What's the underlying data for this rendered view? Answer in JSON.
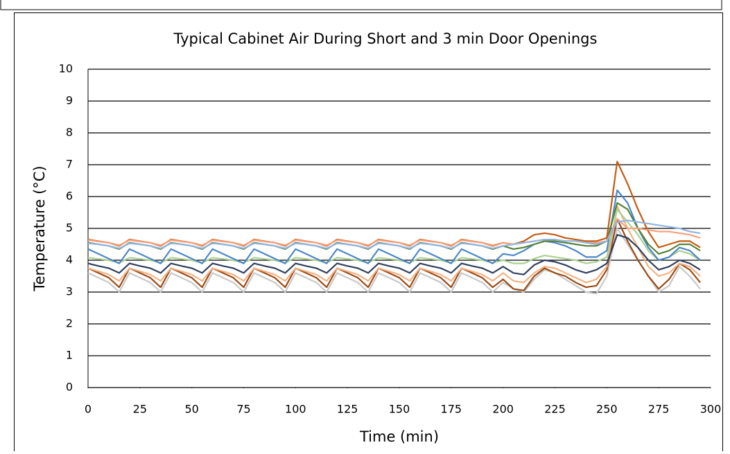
{
  "chart_data": {
    "type": "line",
    "title": "Typical Cabinet Air During Short and 3 min Door Openings",
    "x_label": "Time (min)",
    "y_label": "Temperature (°C)",
    "xlim": [
      0,
      300
    ],
    "xticks": [
      0,
      25,
      50,
      75,
      100,
      125,
      150,
      175,
      200,
      225,
      250,
      275,
      300
    ],
    "ylim": [
      0,
      10
    ],
    "yticks": [
      0,
      1,
      2,
      3,
      4,
      5,
      6,
      7,
      8,
      9,
      10
    ],
    "grid": true,
    "x": [
      0,
      5,
      10,
      15,
      20,
      25,
      30,
      35,
      40,
      45,
      50,
      55,
      60,
      65,
      70,
      75,
      80,
      85,
      90,
      95,
      100,
      105,
      110,
      115,
      120,
      125,
      130,
      135,
      140,
      145,
      150,
      155,
      160,
      165,
      170,
      175,
      180,
      185,
      190,
      195,
      200,
      205,
      210,
      215,
      220,
      225,
      230,
      235,
      240,
      245,
      250,
      255,
      260,
      265,
      270,
      275,
      280,
      285,
      290,
      295
    ],
    "series": [
      {
        "color": "#c8c8c8",
        "values": [
          3.6,
          3.45,
          3.3,
          3.0,
          3.6,
          3.45,
          3.3,
          3.0,
          3.6,
          3.45,
          3.3,
          3.0,
          3.6,
          3.45,
          3.3,
          3.0,
          3.6,
          3.45,
          3.3,
          3.0,
          3.6,
          3.45,
          3.3,
          3.0,
          3.6,
          3.45,
          3.3,
          3.0,
          3.6,
          3.45,
          3.3,
          3.0,
          3.6,
          3.45,
          3.3,
          3.0,
          3.6,
          3.45,
          3.3,
          3.0,
          3.3,
          3.1,
          3.0,
          3.4,
          3.7,
          3.6,
          3.4,
          3.2,
          3.0,
          2.95,
          3.5,
          5.0,
          4.5,
          4.0,
          3.5,
          3.0,
          3.2,
          3.8,
          3.5,
          3.1
        ]
      },
      {
        "color": "#9c4a12",
        "values": [
          3.75,
          3.6,
          3.45,
          3.15,
          3.75,
          3.6,
          3.45,
          3.15,
          3.75,
          3.6,
          3.45,
          3.15,
          3.75,
          3.6,
          3.45,
          3.15,
          3.75,
          3.6,
          3.45,
          3.15,
          3.75,
          3.6,
          3.45,
          3.15,
          3.75,
          3.6,
          3.45,
          3.15,
          3.75,
          3.6,
          3.45,
          3.15,
          3.75,
          3.6,
          3.45,
          3.15,
          3.75,
          3.6,
          3.45,
          3.15,
          3.4,
          3.1,
          3.05,
          3.5,
          3.75,
          3.6,
          3.5,
          3.3,
          3.15,
          3.2,
          3.7,
          5.3,
          4.6,
          4.0,
          3.5,
          3.1,
          3.4,
          3.9,
          3.7,
          3.3
        ]
      },
      {
        "color": "#f4b183",
        "values": [
          3.75,
          3.65,
          3.55,
          3.35,
          3.75,
          3.65,
          3.55,
          3.35,
          3.75,
          3.65,
          3.55,
          3.35,
          3.75,
          3.65,
          3.55,
          3.35,
          3.75,
          3.65,
          3.55,
          3.35,
          3.75,
          3.65,
          3.55,
          3.35,
          3.75,
          3.65,
          3.55,
          3.35,
          3.75,
          3.65,
          3.55,
          3.35,
          3.75,
          3.65,
          3.55,
          3.35,
          3.75,
          3.65,
          3.55,
          3.35,
          3.6,
          3.35,
          3.3,
          3.6,
          3.8,
          3.75,
          3.6,
          3.45,
          3.3,
          3.4,
          3.8,
          5.7,
          5.0,
          4.4,
          3.8,
          3.5,
          3.6,
          3.9,
          3.8,
          3.5
        ]
      },
      {
        "color": "#2f3f5f",
        "values": [
          3.9,
          3.82,
          3.75,
          3.6,
          3.9,
          3.82,
          3.75,
          3.6,
          3.9,
          3.82,
          3.75,
          3.6,
          3.9,
          3.82,
          3.75,
          3.6,
          3.9,
          3.82,
          3.75,
          3.6,
          3.9,
          3.82,
          3.75,
          3.6,
          3.9,
          3.82,
          3.75,
          3.6,
          3.9,
          3.82,
          3.75,
          3.6,
          3.9,
          3.82,
          3.75,
          3.6,
          3.9,
          3.82,
          3.75,
          3.6,
          3.8,
          3.6,
          3.55,
          3.85,
          4.0,
          3.95,
          3.85,
          3.7,
          3.6,
          3.7,
          3.9,
          4.8,
          4.7,
          4.4,
          4.0,
          3.7,
          3.8,
          4.0,
          3.9,
          3.7
        ]
      },
      {
        "color": "#a9d18e",
        "values": [
          4.08,
          4.04,
          4.0,
          3.92,
          4.08,
          4.04,
          4.0,
          3.92,
          4.08,
          4.04,
          4.0,
          3.92,
          4.08,
          4.04,
          4.0,
          3.92,
          4.08,
          4.04,
          4.0,
          3.92,
          4.08,
          4.04,
          4.0,
          3.92,
          4.08,
          4.04,
          4.0,
          3.92,
          4.08,
          4.04,
          4.0,
          3.92,
          4.08,
          4.04,
          4.0,
          3.92,
          4.08,
          4.04,
          4.0,
          3.92,
          4.0,
          3.9,
          3.9,
          4.05,
          4.15,
          4.1,
          4.05,
          4.0,
          3.9,
          3.95,
          4.1,
          5.6,
          5.2,
          4.8,
          4.3,
          4.0,
          4.1,
          4.3,
          4.2,
          4.0
        ]
      },
      {
        "color": "#4a86c8",
        "values": [
          4.35,
          4.2,
          4.05,
          3.9,
          4.35,
          4.2,
          4.05,
          3.9,
          4.35,
          4.2,
          4.05,
          3.9,
          4.35,
          4.2,
          4.05,
          3.9,
          4.35,
          4.2,
          4.05,
          3.9,
          4.35,
          4.2,
          4.05,
          3.9,
          4.35,
          4.2,
          4.05,
          3.9,
          4.35,
          4.2,
          4.05,
          3.9,
          4.35,
          4.2,
          4.05,
          3.9,
          4.35,
          4.2,
          4.05,
          3.9,
          4.2,
          4.15,
          4.3,
          4.5,
          4.6,
          4.55,
          4.45,
          4.3,
          4.1,
          4.1,
          4.3,
          6.2,
          5.8,
          5.0,
          4.4,
          4.0,
          4.1,
          4.4,
          4.3,
          4.0
        ]
      },
      {
        "color": "#548235",
        "values": [
          4.55,
          4.5,
          4.45,
          4.35,
          4.55,
          4.5,
          4.45,
          4.35,
          4.55,
          4.5,
          4.45,
          4.35,
          4.55,
          4.5,
          4.45,
          4.35,
          4.55,
          4.5,
          4.45,
          4.35,
          4.55,
          4.5,
          4.45,
          4.35,
          4.55,
          4.5,
          4.45,
          4.35,
          4.55,
          4.5,
          4.45,
          4.35,
          4.55,
          4.5,
          4.45,
          4.35,
          4.55,
          4.5,
          4.45,
          4.35,
          4.45,
          4.35,
          4.4,
          4.5,
          4.6,
          4.6,
          4.55,
          4.5,
          4.45,
          4.45,
          4.6,
          5.8,
          5.6,
          5.0,
          4.5,
          4.2,
          4.3,
          4.5,
          4.5,
          4.3
        ]
      },
      {
        "color": "#c55a11",
        "values": [
          4.65,
          4.6,
          4.55,
          4.45,
          4.65,
          4.6,
          4.55,
          4.45,
          4.65,
          4.6,
          4.55,
          4.45,
          4.65,
          4.6,
          4.55,
          4.45,
          4.65,
          4.6,
          4.55,
          4.45,
          4.65,
          4.6,
          4.55,
          4.45,
          4.65,
          4.6,
          4.55,
          4.45,
          4.65,
          4.6,
          4.55,
          4.45,
          4.65,
          4.6,
          4.55,
          4.45,
          4.65,
          4.6,
          4.55,
          4.45,
          4.55,
          4.5,
          4.6,
          4.8,
          4.85,
          4.8,
          4.7,
          4.65,
          4.6,
          4.6,
          4.7,
          7.1,
          6.4,
          5.6,
          4.9,
          4.4,
          4.5,
          4.6,
          4.6,
          4.4
        ]
      },
      {
        "color": "#f8a07a",
        "values": [
          4.63,
          4.59,
          4.55,
          4.47,
          4.63,
          4.59,
          4.55,
          4.47,
          4.63,
          4.59,
          4.55,
          4.47,
          4.63,
          4.59,
          4.55,
          4.47,
          4.63,
          4.59,
          4.55,
          4.47,
          4.63,
          4.59,
          4.55,
          4.47,
          4.63,
          4.59,
          4.55,
          4.47,
          4.63,
          4.59,
          4.55,
          4.47,
          4.63,
          4.59,
          4.55,
          4.47,
          4.63,
          4.59,
          4.55,
          4.47,
          4.55,
          4.5,
          4.55,
          4.6,
          4.65,
          4.65,
          4.6,
          4.6,
          4.55,
          4.55,
          4.6,
          5.3,
          5.0,
          5.0,
          4.95,
          4.9,
          4.9,
          4.85,
          4.8,
          4.7
        ]
      },
      {
        "color": "#8fb4e3",
        "values": [
          4.53,
          4.5,
          4.45,
          4.37,
          4.53,
          4.5,
          4.45,
          4.37,
          4.53,
          4.5,
          4.45,
          4.37,
          4.53,
          4.5,
          4.45,
          4.37,
          4.53,
          4.5,
          4.45,
          4.37,
          4.53,
          4.5,
          4.45,
          4.37,
          4.53,
          4.5,
          4.45,
          4.37,
          4.53,
          4.5,
          4.45,
          4.37,
          4.53,
          4.5,
          4.45,
          4.37,
          4.53,
          4.5,
          4.45,
          4.37,
          4.45,
          4.5,
          4.55,
          4.6,
          4.65,
          4.65,
          4.6,
          4.6,
          4.55,
          4.5,
          4.6,
          5.2,
          5.25,
          5.2,
          5.15,
          5.1,
          5.05,
          5.0,
          4.9,
          4.85
        ]
      }
    ]
  }
}
